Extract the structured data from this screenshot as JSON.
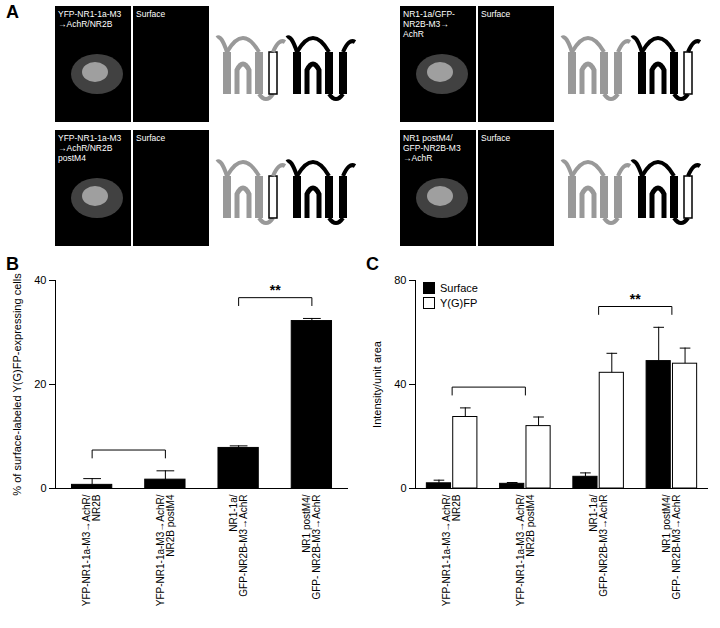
{
  "panel_A": {
    "label": "A",
    "images": [
      {
        "label": "YFP-NR1-1a-M3\n→AchR/NR2B",
        "surface_label": "Surface"
      },
      {
        "label": "NR1-1a/GFP-\nNR2B-M3→\nAchR",
        "surface_label": "Surface"
      },
      {
        "label": "YFP-NR1-1a-M3\n→AchR/NR2B\npostM4",
        "surface_label": "Surface"
      },
      {
        "label": "NR1 postM4/\nGFP-NR2B-M3\n→AchR",
        "surface_label": "Surface"
      }
    ]
  },
  "chart_data": [
    {
      "type": "bar",
      "title": "B",
      "y_label": "% of surface-labeled Y(G)FP-expressing cells",
      "categories": [
        "YFP-NR1-1a-M3→AchR/\nNR2B",
        "YFP-NR1-1a-M3→AchR/\nNR2B postM4",
        "NR1-1a/\nGFP-NR2B-M3→AchR",
        "NR1 postM4/\nGFP- NR2B-M3→AchR"
      ],
      "values": [
        0.7,
        1.7,
        7.8,
        32.2
      ],
      "errors": [
        1.2,
        1.7,
        0.4,
        0.5
      ],
      "color": "#000000",
      "ylim": [
        0,
        40
      ],
      "yticks": [
        0,
        20,
        40
      ],
      "annotations": [
        {
          "between": [
            0,
            1
          ]
        },
        {
          "between": [
            2,
            3
          ],
          "text": "**"
        }
      ]
    },
    {
      "type": "bar",
      "title": "C",
      "y_label": "Intensity/unit area",
      "categories": [
        "YFP-NR1-1a-M3→AchR/\nNR2B",
        "YFP-NR1-1a-M3→AchR/\nNR2B postM4",
        "NR1-1a/\nGFP-NR2B-M3→AchR",
        "NR1 postM4/\nGFP- NR2B-M3→AchR"
      ],
      "series": [
        {
          "name": "Surface",
          "color": "#000000",
          "values": [
            2,
            1.8,
            4.5,
            49
          ],
          "errors": [
            1.2,
            0.5,
            1.5,
            13
          ]
        },
        {
          "name": "Y(G)FP",
          "color": "#ffffff",
          "values": [
            27.5,
            24,
            44.5,
            48
          ],
          "errors": [
            3.5,
            3.5,
            7.5,
            6
          ]
        }
      ],
      "ylim": [
        0,
        80
      ],
      "yticks": [
        0,
        40,
        80
      ],
      "legend": "top-left",
      "annotations": [
        {
          "between": [
            0,
            1
          ]
        },
        {
          "between": [
            2,
            3
          ],
          "text": "**"
        }
      ]
    }
  ]
}
